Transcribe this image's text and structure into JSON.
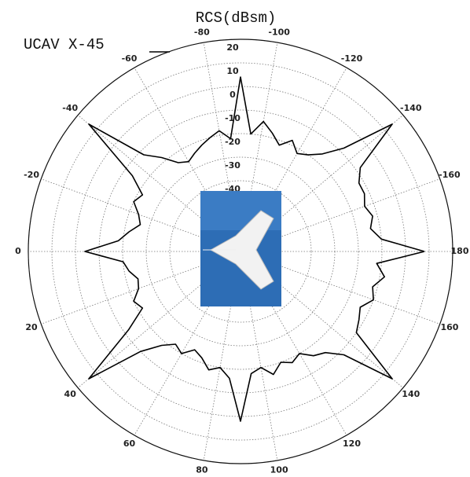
{
  "chart_data": {
    "type": "polar",
    "title": "RCS(dBsm)",
    "x": [
      -180,
      -175,
      -170,
      -165,
      -160,
      -155,
      -150,
      -145,
      -140,
      -135,
      -130,
      -125,
      -120,
      -115,
      -110,
      -105,
      -100,
      -95,
      -90,
      -85,
      -80,
      -75,
      -70,
      -65,
      -60,
      -55,
      -50,
      -45,
      -40,
      -35,
      -30,
      -25,
      -20,
      -15,
      -10,
      -5,
      0,
      5,
      10,
      15,
      20,
      25,
      30,
      35,
      40,
      45,
      50,
      55,
      60,
      65,
      70,
      75,
      80,
      85,
      90,
      95,
      100,
      105,
      110,
      115,
      120,
      125,
      130,
      135,
      140,
      145,
      150,
      155,
      160,
      165,
      170,
      175,
      180
    ],
    "series": [
      {
        "name": "UCAV X-45",
        "color": "#000000",
        "values": [
          8,
          -10,
          -14,
          -12,
          -14,
          -12,
          -12,
          -8,
          14,
          -8,
          -16,
          -20,
          -22,
          -18,
          -22,
          -18,
          -14,
          -20,
          4,
          -22,
          -18,
          -20,
          -22,
          -24,
          -26,
          -24,
          -18,
          -12,
          14,
          -14,
          -22,
          -20,
          -24,
          -26,
          -22,
          -18,
          -4,
          -20,
          -22,
          -25,
          -24,
          -20,
          -22,
          -12,
          14,
          -10,
          -18,
          -22,
          -20,
          -24,
          -22,
          -18,
          -20,
          -16,
          2,
          -18,
          -20,
          -16,
          -20,
          -18,
          -20,
          -16,
          -14,
          -8,
          14,
          -10,
          -12,
          -14,
          -10,
          -12,
          -8,
          -12,
          8
        ]
      }
    ],
    "rlim": [
      -70,
      20
    ],
    "rticks": [
      20,
      10,
      0,
      -10,
      -20,
      -30,
      -40
    ],
    "thetaticks": [
      -160,
      -140,
      -120,
      -100,
      -80,
      -60,
      -40,
      -20,
      0,
      20,
      40,
      60,
      80,
      100,
      120,
      140,
      160,
      180
    ],
    "grid": true
  }
}
